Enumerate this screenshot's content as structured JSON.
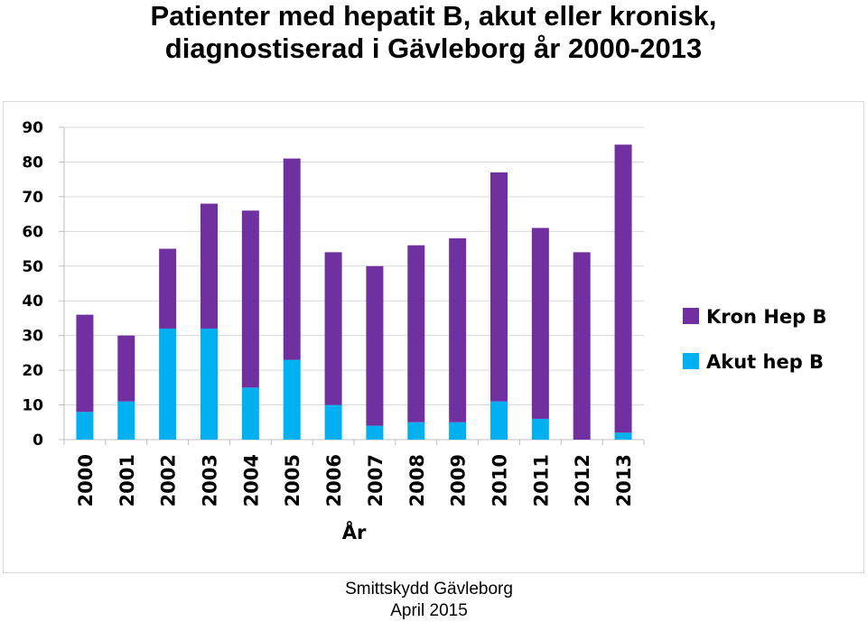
{
  "slide": {
    "title_line1": "Patienter med hepatit B, akut eller kronisk,",
    "title_line2": "diagnostiserad i Gävleborg år 2000-2013",
    "footer_line1": "Smittskydd Gävleborg",
    "footer_line2": "April 2015"
  },
  "chart_data": {
    "type": "bar",
    "stacked": true,
    "title": "",
    "xlabel": "År",
    "ylabel": "",
    "ylim": [
      0,
      90
    ],
    "y_ticks": [
      0,
      10,
      20,
      30,
      40,
      50,
      60,
      70,
      80,
      90
    ],
    "grid": true,
    "legend_position": "right",
    "categories": [
      "2000",
      "2001",
      "2002",
      "2003",
      "2004",
      "2005",
      "2006",
      "2007",
      "2008",
      "2009",
      "2010",
      "2011",
      "2012",
      "2013"
    ],
    "series": [
      {
        "name": "Akut hep B",
        "color": "#00b0f0",
        "values": [
          8,
          11,
          32,
          32,
          15,
          23,
          10,
          4,
          5,
          5,
          11,
          6,
          0,
          2
        ]
      },
      {
        "name": "Kron Hep B",
        "color": "#7030a0",
        "values": [
          28,
          19,
          23,
          36,
          51,
          58,
          44,
          46,
          51,
          53,
          66,
          55,
          54,
          83
        ]
      }
    ],
    "legend_order": [
      "Kron Hep B",
      "Akut hep B"
    ]
  }
}
